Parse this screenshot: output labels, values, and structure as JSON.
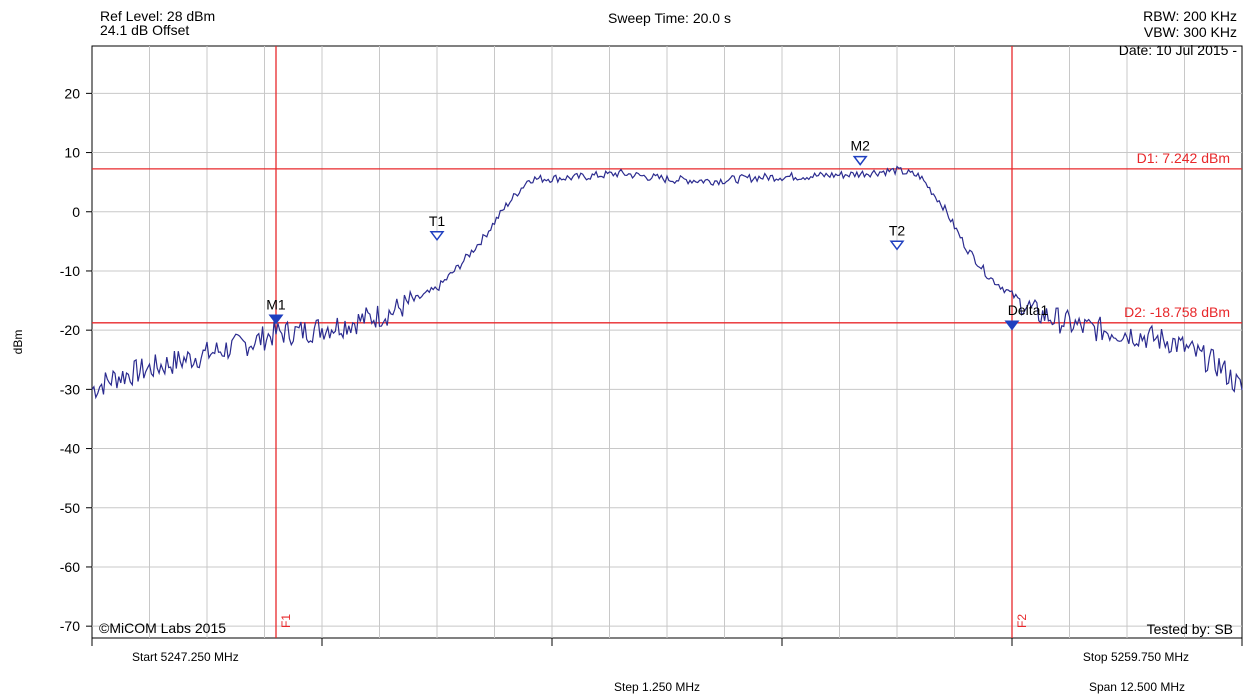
{
  "header": {
    "ref_level": "Ref Level: 28 dBm",
    "offset": "24.1 dB Offset",
    "sweep_time": "Sweep Time: 20.0 s",
    "rbw": "RBW: 200 KHz",
    "vbw": "VBW: 300 KHz",
    "date": "Date: 10 Jul 2015 -"
  },
  "footer": {
    "start": "Start 5247.250 MHz",
    "stop": "Stop 5259.750 MHz",
    "step": "Step 1.250 MHz",
    "span": "Span 12.500 MHz",
    "copyright": "©MiCOM Labs 2015",
    "tested_by": "Tested by: SB"
  },
  "colors": {
    "trace": "#2b2b8f",
    "marker": "#1f3fbf",
    "limit": "#e8282b",
    "grid": "#c8c8c8"
  },
  "chart_data": {
    "type": "line",
    "ylabel": "dBm",
    "xlim": [
      5247.25,
      5259.75
    ],
    "ylim": [
      -72,
      28
    ],
    "x_step": 1.25,
    "yticks": [
      20,
      10,
      0,
      -10,
      -20,
      -30,
      -40,
      -50,
      -60,
      -70
    ],
    "grid": true,
    "series": [
      {
        "x": [
          5247.25,
          5247.5,
          5248.0,
          5248.5,
          5249.0,
          5249.25,
          5249.5,
          5250.0,
          5250.5,
          5251.0,
          5251.25,
          5251.5,
          5251.75,
          5252.0,
          5252.5,
          5253.0,
          5253.5,
          5254.0,
          5254.5,
          5255.0,
          5255.5,
          5256.0,
          5256.25,
          5256.5,
          5256.75,
          5257.0,
          5257.25,
          5257.5,
          5258.0,
          5258.5,
          5259.0,
          5259.5,
          5259.75
        ],
        "y": [
          -30,
          -28,
          -26,
          -24,
          -22,
          -20.5,
          -20.3,
          -19,
          -17,
          -13,
          -9,
          -4.5,
          1,
          5.5,
          5.8,
          6.5,
          5.5,
          5.2,
          5.8,
          6,
          6.3,
          7,
          6,
          1,
          -6,
          -11,
          -14,
          -17,
          -19.5,
          -20.5,
          -22,
          -26,
          -30
        ]
      }
    ],
    "markers": [
      {
        "label": "M1",
        "x": 5249.25,
        "y": -18.5,
        "filled": true
      },
      {
        "label": "T1",
        "x": 5251.0,
        "y": -4.4,
        "filled": false
      },
      {
        "label": "M2",
        "x": 5255.6,
        "y": 8.3,
        "filled": false
      },
      {
        "label": "T2",
        "x": 5256.0,
        "y": -6.0,
        "filled": false
      },
      {
        "label": "Delta1",
        "x": 5257.25,
        "y": -19.5,
        "filled": true
      }
    ],
    "hlines": [
      {
        "label": "D1: 7.242 dBm",
        "y": 7.242
      },
      {
        "label": "D2: -18.758 dBm",
        "y": -18.758
      }
    ],
    "vlines": [
      {
        "label": "F1",
        "x": 5249.25
      },
      {
        "label": "F2",
        "x": 5257.25
      }
    ]
  }
}
